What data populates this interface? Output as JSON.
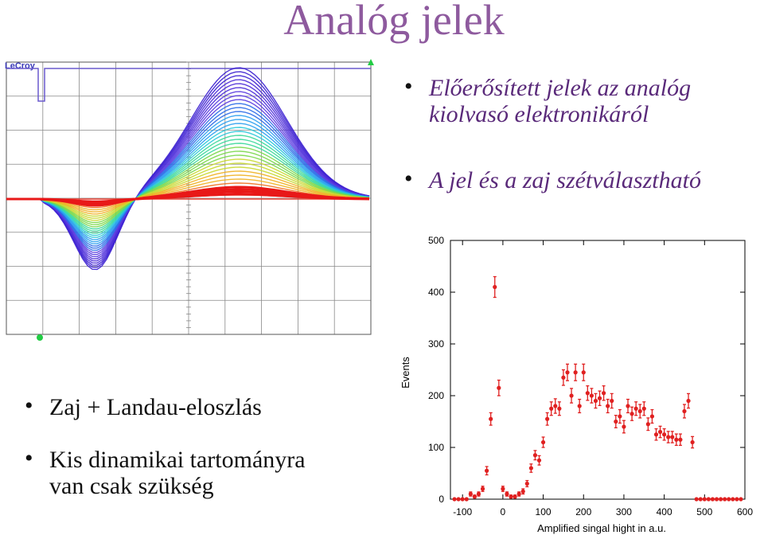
{
  "title": "Analóg jelek",
  "bullets_top": [
    {
      "line1": "Előerősített jelek az analóg",
      "line2": "kiolvasó elektronikáról"
    },
    {
      "line1": "A jel és a zaj szétválasztható",
      "line2": ""
    }
  ],
  "bullets_bottom": [
    {
      "line1": "Zaj + Landau-eloszlás",
      "line2": ""
    },
    {
      "line1": "Kis dinamikai tartományra",
      "line2": "van csak szükség"
    }
  ],
  "scope_label": "LeCroy",
  "colors": {
    "title": "#8e5a9e",
    "histogram_points": "#e02020",
    "scope_grid": "#888888"
  },
  "chart_data": {
    "type": "scatter",
    "title": "",
    "xlabel": "Amplified singal hight in a.u.",
    "ylabel": "Events",
    "xlim": [
      -130,
      600
    ],
    "ylim": [
      0,
      500
    ],
    "xticks": [
      -100,
      0,
      100,
      200,
      300,
      400,
      500,
      600
    ],
    "yticks": [
      0,
      100,
      200,
      300,
      400,
      500
    ],
    "grid": false,
    "series": [
      {
        "x": [
          -120,
          -110,
          -100,
          -90,
          -80,
          -70,
          -60,
          -50,
          -40,
          -30,
          -20,
          -10,
          0,
          10,
          20,
          30,
          40,
          50,
          60,
          70,
          80,
          90,
          100,
          110,
          120,
          130,
          140,
          150,
          160,
          170,
          180,
          190,
          200,
          210,
          220,
          230,
          240,
          250,
          260,
          270,
          280,
          290,
          300,
          310,
          320,
          330,
          340,
          350,
          360,
          370,
          380,
          390,
          400,
          410,
          420,
          430,
          440,
          450,
          460,
          470,
          480,
          490,
          500,
          510,
          520,
          530,
          540,
          550,
          560,
          570,
          580,
          590
        ],
        "y": [
          0,
          0,
          0,
          0,
          10,
          5,
          10,
          20,
          55,
          155,
          410,
          215,
          20,
          10,
          5,
          5,
          10,
          15,
          30,
          60,
          85,
          75,
          110,
          155,
          175,
          180,
          175,
          235,
          245,
          200,
          245,
          180,
          245,
          205,
          200,
          190,
          195,
          205,
          180,
          190,
          150,
          160,
          140,
          180,
          165,
          175,
          170,
          175,
          145,
          160,
          125,
          130,
          125,
          120,
          120,
          115,
          115,
          170,
          190,
          110,
          0,
          0,
          0,
          0,
          0,
          0,
          0,
          0,
          0,
          0,
          0,
          0
        ],
        "errors": [
          0,
          0,
          0,
          0,
          4,
          3,
          4,
          5,
          8,
          12,
          20,
          15,
          5,
          4,
          3,
          3,
          4,
          5,
          6,
          8,
          9,
          9,
          10,
          12,
          13,
          14,
          13,
          15,
          16,
          14,
          16,
          13,
          16,
          14,
          14,
          14,
          14,
          14,
          13,
          14,
          12,
          13,
          12,
          13,
          13,
          13,
          13,
          13,
          12,
          13,
          11,
          11,
          11,
          11,
          11,
          11,
          11,
          13,
          14,
          11,
          0,
          0,
          0,
          0,
          0,
          0,
          0,
          0,
          0,
          0,
          0,
          0
        ]
      }
    ]
  }
}
